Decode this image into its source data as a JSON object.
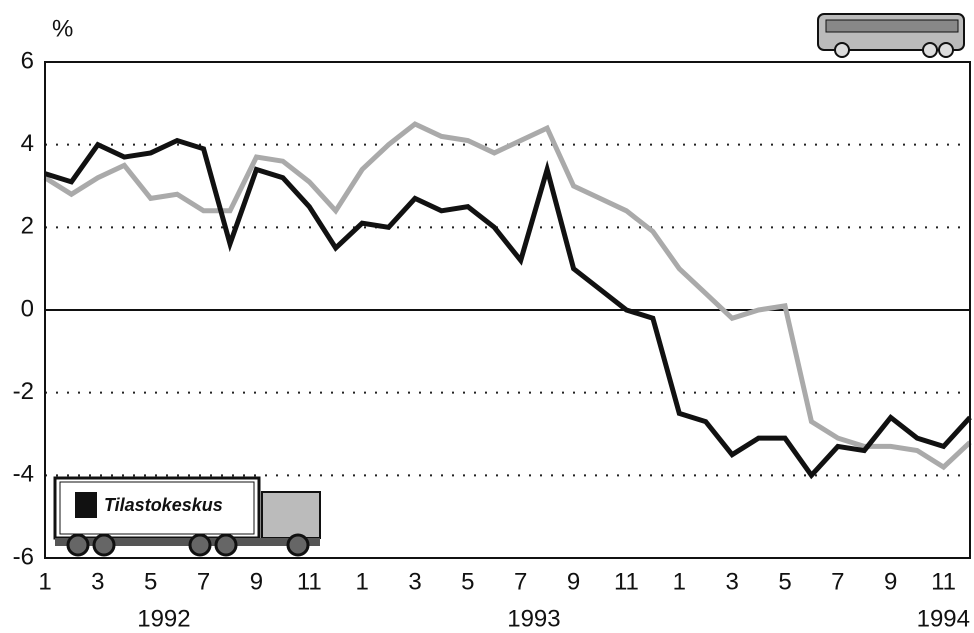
{
  "chart_data": {
    "type": "line",
    "y_label": "%",
    "logo_text": "Tilastokeskus",
    "categories": [
      "1",
      null,
      "3",
      null,
      "5",
      null,
      "7",
      null,
      "9",
      null,
      "11",
      null,
      "1",
      null,
      "3",
      null,
      "5",
      null,
      "7",
      null,
      "9",
      null,
      "11",
      null,
      "1",
      null,
      "3",
      null,
      "5",
      null,
      "7",
      null,
      "9",
      null,
      "11",
      null
    ],
    "year_labels": [
      "1992",
      "1993",
      "1994"
    ],
    "series": [
      {
        "color": "#111111",
        "values": [
          3.3,
          3.1,
          4.0,
          3.7,
          3.8,
          4.1,
          3.9,
          1.6,
          3.4,
          3.2,
          2.5,
          1.5,
          2.1,
          2.0,
          2.7,
          2.4,
          2.5,
          2.0,
          1.2,
          3.4,
          1.0,
          0.5,
          0.0,
          -0.2,
          -2.5,
          -2.7,
          -3.5,
          -3.1,
          -3.1,
          -4.0,
          -3.3,
          -3.4,
          -2.6,
          -3.1,
          -3.3,
          -2.6
        ]
      },
      {
        "color": "#aaaaaa",
        "values": [
          3.2,
          2.8,
          3.2,
          3.5,
          2.7,
          2.8,
          2.4,
          2.4,
          3.7,
          3.6,
          3.1,
          2.4,
          3.4,
          4.0,
          4.5,
          4.2,
          4.1,
          3.8,
          4.1,
          4.4,
          3.0,
          2.7,
          2.4,
          1.9,
          1.0,
          0.4,
          -0.2,
          0.0,
          0.1,
          -2.7,
          -3.1,
          -3.3,
          -3.3,
          -3.4,
          -3.8,
          -3.2
        ]
      }
    ],
    "ylim": [
      -6,
      6
    ],
    "yticks": [
      -6,
      -4,
      -2,
      0,
      2,
      4,
      6
    ],
    "grid": true
  }
}
